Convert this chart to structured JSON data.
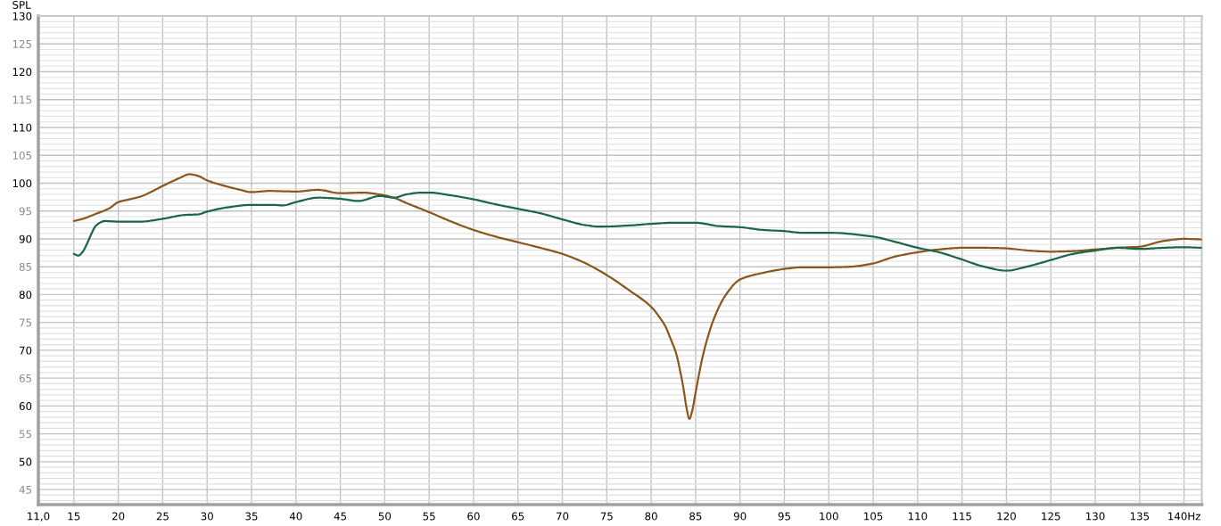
{
  "chart_data": {
    "type": "line",
    "ylabel": "SPL",
    "xlim": [
      11,
      142
    ],
    "ylim": [
      42.3,
      130
    ],
    "xticks": [
      {
        "value": 11,
        "label": "11,0"
      },
      15,
      20,
      25,
      30,
      35,
      40,
      45,
      50,
      55,
      60,
      65,
      70,
      75,
      80,
      85,
      90,
      95,
      100,
      105,
      110,
      115,
      120,
      125,
      130,
      135,
      {
        "value": 140,
        "label": "140Hz"
      }
    ],
    "yticks": [
      {
        "value": 43,
        "label": null
      },
      {
        "value": 44,
        "label": null
      },
      45,
      {
        "value": 46,
        "label": null
      },
      {
        "value": 47,
        "label": null
      },
      {
        "value": 48,
        "label": null
      },
      {
        "value": 49,
        "label": null
      },
      50,
      {
        "value": 51,
        "label": null
      },
      {
        "value": 52,
        "label": null
      },
      {
        "value": 53,
        "label": null
      },
      {
        "value": 54,
        "label": null
      },
      55,
      {
        "value": 56,
        "label": null
      },
      {
        "value": 57,
        "label": null
      },
      {
        "value": 58,
        "label": null
      },
      {
        "value": 59,
        "label": null
      },
      60,
      {
        "value": 61,
        "label": null
      },
      {
        "value": 62,
        "label": null
      },
      {
        "value": 63,
        "label": null
      },
      {
        "value": 64,
        "label": null
      },
      65,
      {
        "value": 66,
        "label": null
      },
      {
        "value": 67,
        "label": null
      },
      {
        "value": 68,
        "label": null
      },
      {
        "value": 69,
        "label": null
      },
      70,
      {
        "value": 71,
        "label": null
      },
      {
        "value": 72,
        "label": null
      },
      {
        "value": 73,
        "label": null
      },
      {
        "value": 74,
        "label": null
      },
      75,
      {
        "value": 76,
        "label": null
      },
      {
        "value": 77,
        "label": null
      },
      {
        "value": 78,
        "label": null
      },
      {
        "value": 79,
        "label": null
      },
      80,
      {
        "value": 81,
        "label": null
      },
      {
        "value": 82,
        "label": null
      },
      {
        "value": 83,
        "label": null
      },
      {
        "value": 84,
        "label": null
      },
      85,
      {
        "value": 86,
        "label": null
      },
      {
        "value": 87,
        "label": null
      },
      {
        "value": 88,
        "label": null
      },
      {
        "value": 89,
        "label": null
      },
      90,
      {
        "value": 91,
        "label": null
      },
      {
        "value": 92,
        "label": null
      },
      {
        "value": 93,
        "label": null
      },
      {
        "value": 94,
        "label": null
      },
      95,
      {
        "value": 96,
        "label": null
      },
      {
        "value": 97,
        "label": null
      },
      {
        "value": 98,
        "label": null
      },
      {
        "value": 99,
        "label": null
      },
      100,
      {
        "value": 101,
        "label": null
      },
      {
        "value": 102,
        "label": null
      },
      {
        "value": 103,
        "label": null
      },
      {
        "value": 104,
        "label": null
      },
      105,
      {
        "value": 106,
        "label": null
      },
      {
        "value": 107,
        "label": null
      },
      {
        "value": 108,
        "label": null
      },
      {
        "value": 109,
        "label": null
      },
      110,
      {
        "value": 111,
        "label": null
      },
      {
        "value": 112,
        "label": null
      },
      {
        "value": 113,
        "label": null
      },
      {
        "value": 114,
        "label": null
      },
      115,
      {
        "value": 116,
        "label": null
      },
      {
        "value": 117,
        "label": null
      },
      {
        "value": 118,
        "label": null
      },
      {
        "value": 119,
        "label": null
      },
      120,
      {
        "value": 121,
        "label": null
      },
      {
        "value": 122,
        "label": null
      },
      {
        "value": 123,
        "label": null
      },
      {
        "value": 124,
        "label": null
      },
      125,
      {
        "value": 126,
        "label": null
      },
      {
        "value": 127,
        "label": null
      },
      {
        "value": 128,
        "label": null
      },
      {
        "value": 129,
        "label": null
      },
      130
    ],
    "grid": true,
    "line_style": "solid",
    "series": [
      {
        "color": "#8b561b",
        "x": [
          15,
          16,
          17.5,
          19,
          20,
          21,
          22.5,
          25,
          27,
          28,
          29,
          30,
          32,
          33.5,
          35,
          37,
          40,
          42.5,
          45,
          47.5,
          50,
          51,
          52.5,
          55,
          57.5,
          60,
          62.5,
          65,
          67.5,
          70,
          72.5,
          75,
          77.5,
          80,
          81,
          81.6,
          82.2,
          82.8,
          83.3,
          83.6,
          84,
          84.3,
          84.6,
          85,
          85.4,
          85.8,
          86.4,
          87,
          88.3,
          90,
          92.6,
          95,
          97,
          100,
          102.4,
          105,
          107.4,
          110,
          112.4,
          115,
          117.5,
          120,
          122.5,
          125,
          127.5,
          130,
          132.5,
          135,
          137.6,
          140,
          142
        ],
        "values": [
          93.2,
          93.6,
          94.5,
          95.5,
          96.6,
          97.0,
          97.6,
          99.5,
          101.0,
          101.6,
          101.3,
          100.5,
          99.5,
          98.9,
          98.4,
          98.6,
          98.5,
          98.8,
          98.2,
          98.3,
          97.8,
          97.4,
          96.4,
          94.8,
          93.1,
          91.6,
          90.4,
          89.4,
          88.4,
          87.3,
          85.7,
          83.5,
          80.8,
          77.8,
          75.8,
          74.3,
          72.0,
          69.5,
          66.0,
          63.5,
          59.5,
          57.7,
          59.0,
          62.4,
          65.8,
          68.9,
          72.5,
          75.4,
          79.7,
          82.7,
          83.9,
          84.6,
          84.9,
          84.9,
          85.0,
          85.6,
          86.8,
          87.6,
          88.1,
          88.4,
          88.4,
          88.3,
          87.9,
          87.7,
          87.8,
          88.1,
          88.4,
          88.6,
          89.6,
          90.0,
          89.9
        ]
      },
      {
        "color": "#19664a",
        "x": [
          15,
          15.5,
          16,
          16.5,
          17,
          17.5,
          18.5,
          20,
          22.5,
          25,
          27.5,
          29,
          30,
          32.5,
          35,
          37.5,
          38.5,
          40,
          42.5,
          45,
          47,
          49.5,
          51,
          52.5,
          54.1,
          55,
          57.5,
          60,
          62.5,
          65,
          67.5,
          70,
          72.5,
          74.2,
          77.5,
          80,
          82.6,
          85,
          87.6,
          90,
          92.6,
          95,
          97,
          100,
          105,
          107.4,
          110,
          112.4,
          115,
          117.5,
          120,
          122.5,
          125,
          127.5,
          130,
          132.5,
          135,
          137.6,
          140,
          142
        ],
        "values": [
          87.3,
          87.0,
          87.7,
          89.2,
          91.0,
          92.4,
          93.2,
          93.1,
          93.1,
          93.6,
          94.3,
          94.4,
          94.9,
          95.7,
          96.1,
          96.1,
          96.0,
          96.6,
          97.4,
          97.2,
          96.8,
          97.7,
          97.4,
          98.0,
          98.3,
          98.3,
          97.8,
          97.1,
          96.2,
          95.4,
          94.6,
          93.5,
          92.5,
          92.2,
          92.4,
          92.7,
          92.9,
          92.9,
          92.3,
          92.1,
          91.6,
          91.4,
          91.1,
          91.1,
          90.4,
          89.5,
          88.4,
          87.6,
          86.3,
          85.0,
          84.3,
          85.1,
          86.2,
          87.3,
          87.9,
          88.4,
          88.2,
          88.4,
          88.5,
          88.4
        ]
      }
    ]
  }
}
